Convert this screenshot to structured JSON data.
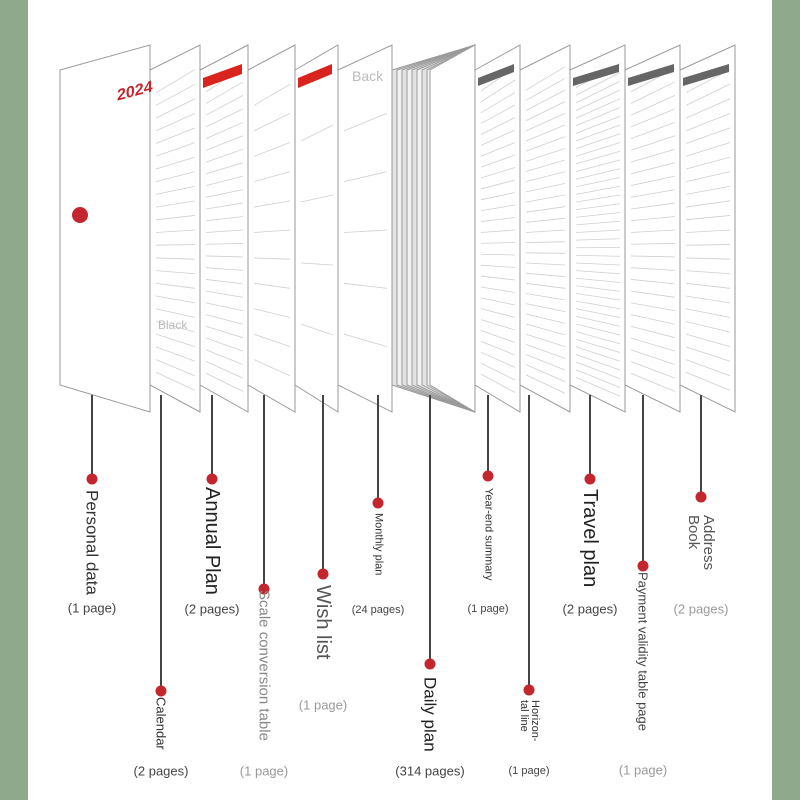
{
  "colors": {
    "frame": "#8fa98c",
    "dot": "#c4262e",
    "accent": "#d9231d",
    "line": "#444444"
  },
  "page_text": {
    "year": "2024",
    "watermark_1": "Black",
    "watermark_2": "Back"
  },
  "sections": [
    {
      "name": "Personal data",
      "count": "(1 page)"
    },
    {
      "name": "Calendar",
      "count": "(2 pages)"
    },
    {
      "name": "Annual Plan",
      "count": "(2 pages)"
    },
    {
      "name": "Scale conversion table",
      "count": "(1 page)"
    },
    {
      "name": "Wish list",
      "count": "(1 page)"
    },
    {
      "name": "Monthly plan",
      "count": "(24 pages)"
    },
    {
      "name": "Daily plan",
      "count": "(314 pages)"
    },
    {
      "name": "Year-end summary",
      "count": "(1 page)"
    },
    {
      "name": "Horizon-\ntal line",
      "count": "(1 page)"
    },
    {
      "name": "Travel plan",
      "count": "(2 pages)"
    },
    {
      "name": "Payment validity table page",
      "count": "(1 page)"
    },
    {
      "name": "Address\nBook",
      "count": "(2 pages)"
    }
  ]
}
